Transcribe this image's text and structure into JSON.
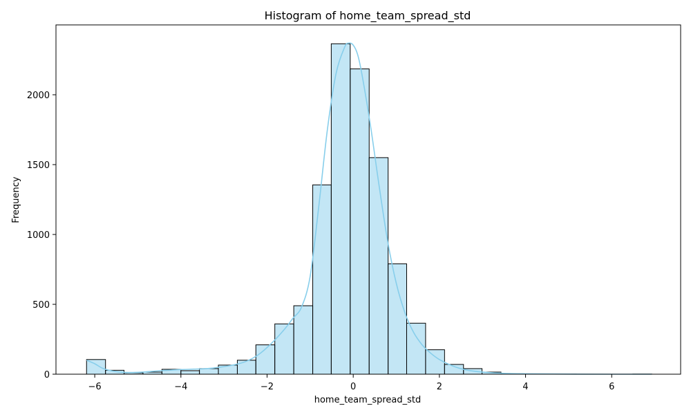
{
  "chart_data": {
    "type": "bar",
    "title": "Histogram of home_team_spread_std",
    "xlabel": "home_team_spread_std",
    "ylabel": "Frequency",
    "xlim": [
      -6.9,
      7.6
    ],
    "ylim": [
      0,
      2500
    ],
    "xticks": [
      -6,
      -4,
      -2,
      0,
      2,
      4,
      6
    ],
    "xtick_labels": [
      "−6",
      "−4",
      "−2",
      "0",
      "2",
      "4",
      "6"
    ],
    "yticks": [
      0,
      500,
      1000,
      1500,
      2000
    ],
    "ytick_labels": [
      "0",
      "500",
      "1000",
      "1500",
      "2000"
    ],
    "bins": [
      {
        "start": -6.19,
        "end": -5.75,
        "count": 105
      },
      {
        "start": -5.75,
        "end": -5.32,
        "count": 28
      },
      {
        "start": -5.32,
        "end": -4.88,
        "count": 10
      },
      {
        "start": -4.88,
        "end": -4.44,
        "count": 15
      },
      {
        "start": -4.44,
        "end": -4.0,
        "count": 35
      },
      {
        "start": -4.0,
        "end": -3.57,
        "count": 25
      },
      {
        "start": -3.57,
        "end": -3.13,
        "count": 40
      },
      {
        "start": -3.13,
        "end": -2.69,
        "count": 65
      },
      {
        "start": -2.69,
        "end": -2.26,
        "count": 100
      },
      {
        "start": -2.26,
        "end": -1.82,
        "count": 210
      },
      {
        "start": -1.82,
        "end": -1.38,
        "count": 360
      },
      {
        "start": -1.38,
        "end": -0.94,
        "count": 490
      },
      {
        "start": -0.94,
        "end": -0.51,
        "count": 1355
      },
      {
        "start": -0.51,
        "end": -0.07,
        "count": 2365
      },
      {
        "start": -0.07,
        "end": 0.37,
        "count": 2185
      },
      {
        "start": 0.37,
        "end": 0.81,
        "count": 1550
      },
      {
        "start": 0.81,
        "end": 1.24,
        "count": 790
      },
      {
        "start": 1.24,
        "end": 1.68,
        "count": 365
      },
      {
        "start": 1.68,
        "end": 2.12,
        "count": 175
      },
      {
        "start": 2.12,
        "end": 2.56,
        "count": 70
      },
      {
        "start": 2.56,
        "end": 2.99,
        "count": 40
      },
      {
        "start": 2.99,
        "end": 3.43,
        "count": 15
      },
      {
        "start": 3.43,
        "end": 3.87,
        "count": 5
      },
      {
        "start": 3.87,
        "end": 4.3,
        "count": 2
      },
      {
        "start": 4.3,
        "end": 4.74,
        "count": 1
      },
      {
        "start": 4.74,
        "end": 5.18,
        "count": 1
      },
      {
        "start": 5.18,
        "end": 5.62,
        "count": 0
      },
      {
        "start": 5.62,
        "end": 6.05,
        "count": 0
      },
      {
        "start": 6.05,
        "end": 6.49,
        "count": 0
      },
      {
        "start": 6.49,
        "end": 6.93,
        "count": 1
      }
    ],
    "kde": {
      "x": [
        -6.19,
        -6.0,
        -5.8,
        -5.5,
        -5.2,
        -4.9,
        -4.6,
        -4.3,
        -4.0,
        -3.7,
        -3.4,
        -3.1,
        -2.8,
        -2.5,
        -2.2,
        -1.9,
        -1.6,
        -1.4,
        -1.2,
        -1.0,
        -0.8,
        -0.6,
        -0.4,
        -0.2,
        -0.1,
        0.0,
        0.1,
        0.2,
        0.4,
        0.6,
        0.8,
        1.0,
        1.2,
        1.4,
        1.6,
        1.8,
        2.0,
        2.3,
        2.6,
        3.0,
        3.5,
        4.0,
        5.0,
        6.0,
        6.93
      ],
      "y": [
        100,
        75,
        40,
        18,
        12,
        15,
        22,
        28,
        33,
        36,
        40,
        50,
        65,
        90,
        140,
        220,
        320,
        400,
        480,
        700,
        1200,
        1750,
        2150,
        2340,
        2370,
        2355,
        2290,
        2150,
        1780,
        1350,
        950,
        650,
        440,
        300,
        210,
        150,
        105,
        60,
        32,
        15,
        6,
        3,
        1,
        0,
        0
      ]
    },
    "colors": {
      "bar_fill": "#87CEEB",
      "bar_fill_opacity": 0.5,
      "bar_edge": "#000000",
      "kde_line": "#87CEEB"
    },
    "grid": false,
    "legend": "none"
  }
}
